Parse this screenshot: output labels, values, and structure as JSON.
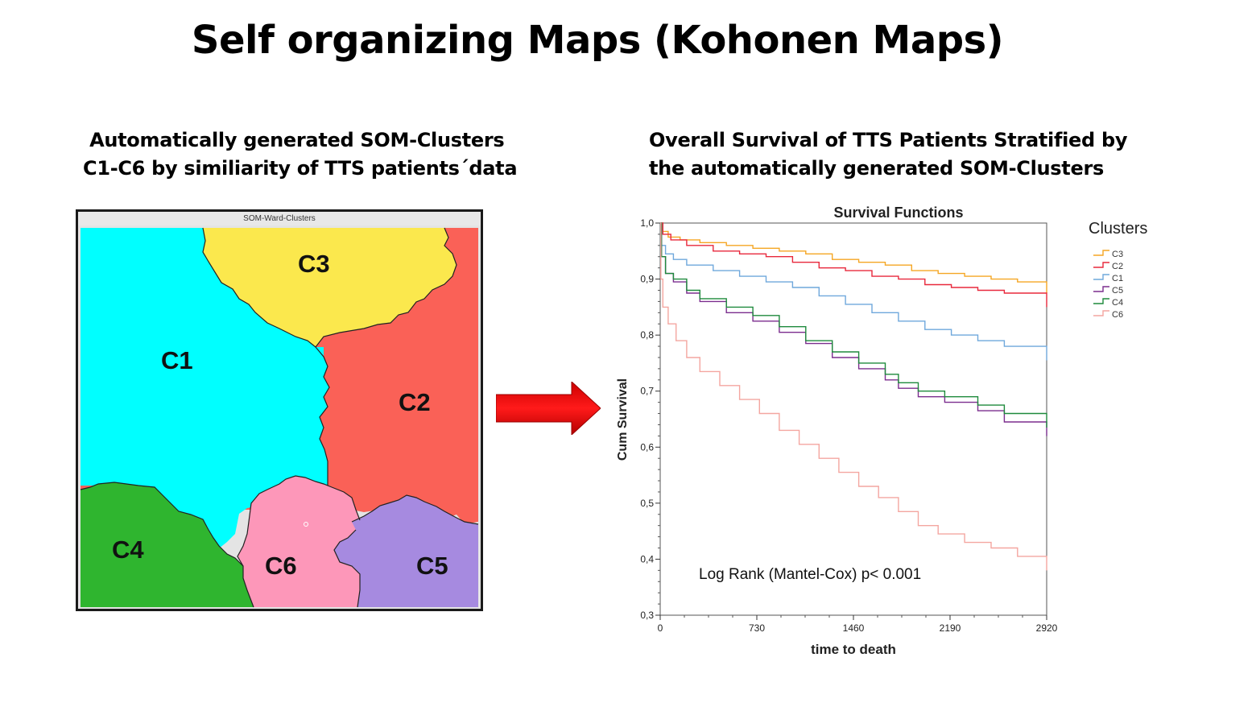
{
  "page": {
    "title": "Self organizing Maps (Kohonen Maps)",
    "left_subtitle": " Automatically generated SOM-Clusters C1-C6 by similiarity of TTS patients´data",
    "right_subtitle": "Overall Survival of TTS Patients Stratified by the automatically generated SOM-Clusters"
  },
  "som_map": {
    "window_title": "SOM-Ward-Clusters",
    "clusters": [
      {
        "label": "C1",
        "color": "#00ffff"
      },
      {
        "label": "C2",
        "color": "#fa6157"
      },
      {
        "label": "C3",
        "color": "#fbe84d"
      },
      {
        "label": "C4",
        "color": "#2fb52f"
      },
      {
        "label": "C5",
        "color": "#a68ae0"
      },
      {
        "label": "C6",
        "color": "#fd97b9"
      }
    ]
  },
  "arrow": {
    "color": "#ee0000",
    "icon": "right-arrow-icon"
  },
  "chart_data": {
    "type": "line",
    "subtype": "kaplan-meier step",
    "title": "Survival Functions",
    "xlabel": "time to death",
    "ylabel": "Cum Survival",
    "xlim": [
      0,
      2920
    ],
    "ylim": [
      0.3,
      1.0
    ],
    "xticks": [
      0,
      730,
      1460,
      2190,
      2920
    ],
    "xtick_labels": [
      "0",
      "730",
      "1460",
      "2190",
      "2920"
    ],
    "yticks": [
      0.3,
      0.4,
      0.5,
      0.6,
      0.7,
      0.8,
      0.9,
      1.0
    ],
    "ytick_labels": [
      "0,3",
      "0,4",
      "0,5",
      "0,6",
      "0,7",
      "0,8",
      "0,9",
      "1,0"
    ],
    "legend_title": "Clusters",
    "legend_position": "right",
    "annotation": "Log Rank (Mantel-Cox) p< 0.001",
    "series": [
      {
        "name": "C3",
        "color": "#f5a623",
        "points": [
          [
            0,
            1.0
          ],
          [
            20,
            0.985
          ],
          [
            60,
            0.975
          ],
          [
            150,
            0.97
          ],
          [
            300,
            0.965
          ],
          [
            500,
            0.96
          ],
          [
            700,
            0.955
          ],
          [
            900,
            0.95
          ],
          [
            1100,
            0.945
          ],
          [
            1300,
            0.935
          ],
          [
            1500,
            0.93
          ],
          [
            1700,
            0.925
          ],
          [
            1900,
            0.915
          ],
          [
            2100,
            0.91
          ],
          [
            2300,
            0.905
          ],
          [
            2500,
            0.9
          ],
          [
            2700,
            0.895
          ],
          [
            2920,
            0.895
          ]
        ]
      },
      {
        "name": "C2",
        "color": "#e8283c",
        "points": [
          [
            0,
            1.0
          ],
          [
            20,
            0.98
          ],
          [
            80,
            0.97
          ],
          [
            200,
            0.96
          ],
          [
            400,
            0.95
          ],
          [
            600,
            0.945
          ],
          [
            800,
            0.94
          ],
          [
            1000,
            0.93
          ],
          [
            1200,
            0.92
          ],
          [
            1400,
            0.915
          ],
          [
            1600,
            0.905
          ],
          [
            1800,
            0.9
          ],
          [
            2000,
            0.89
          ],
          [
            2200,
            0.885
          ],
          [
            2400,
            0.88
          ],
          [
            2600,
            0.875
          ],
          [
            2920,
            0.87
          ]
        ]
      },
      {
        "name": "C1",
        "color": "#6fa8dc",
        "points": [
          [
            0,
            1.0
          ],
          [
            10,
            0.96
          ],
          [
            40,
            0.945
          ],
          [
            100,
            0.935
          ],
          [
            200,
            0.925
          ],
          [
            400,
            0.915
          ],
          [
            600,
            0.905
          ],
          [
            800,
            0.895
          ],
          [
            1000,
            0.885
          ],
          [
            1200,
            0.87
          ],
          [
            1400,
            0.855
          ],
          [
            1600,
            0.84
          ],
          [
            1800,
            0.825
          ],
          [
            2000,
            0.81
          ],
          [
            2200,
            0.8
          ],
          [
            2400,
            0.79
          ],
          [
            2600,
            0.78
          ],
          [
            2920,
            0.775
          ]
        ]
      },
      {
        "name": "C5",
        "color": "#7b2d8e",
        "points": [
          [
            0,
            1.0
          ],
          [
            10,
            0.94
          ],
          [
            40,
            0.91
          ],
          [
            100,
            0.895
          ],
          [
            200,
            0.875
          ],
          [
            300,
            0.86
          ],
          [
            500,
            0.84
          ],
          [
            700,
            0.825
          ],
          [
            900,
            0.805
          ],
          [
            1100,
            0.785
          ],
          [
            1300,
            0.76
          ],
          [
            1500,
            0.74
          ],
          [
            1700,
            0.72
          ],
          [
            1800,
            0.705
          ],
          [
            1950,
            0.69
          ],
          [
            2150,
            0.68
          ],
          [
            2400,
            0.665
          ],
          [
            2600,
            0.645
          ],
          [
            2920,
            0.64
          ]
        ]
      },
      {
        "name": "C4",
        "color": "#1e8a3c",
        "points": [
          [
            0,
            1.0
          ],
          [
            10,
            0.94
          ],
          [
            40,
            0.91
          ],
          [
            100,
            0.9
          ],
          [
            200,
            0.88
          ],
          [
            300,
            0.865
          ],
          [
            500,
            0.85
          ],
          [
            700,
            0.835
          ],
          [
            900,
            0.815
          ],
          [
            1100,
            0.79
          ],
          [
            1300,
            0.77
          ],
          [
            1500,
            0.75
          ],
          [
            1700,
            0.73
          ],
          [
            1800,
            0.715
          ],
          [
            1950,
            0.7
          ],
          [
            2150,
            0.69
          ],
          [
            2400,
            0.675
          ],
          [
            2600,
            0.66
          ],
          [
            2920,
            0.655
          ]
        ]
      },
      {
        "name": "C6",
        "color": "#f4a6a0",
        "points": [
          [
            0,
            1.0
          ],
          [
            5,
            0.9
          ],
          [
            20,
            0.85
          ],
          [
            60,
            0.82
          ],
          [
            120,
            0.79
          ],
          [
            200,
            0.76
          ],
          [
            300,
            0.735
          ],
          [
            450,
            0.71
          ],
          [
            600,
            0.685
          ],
          [
            750,
            0.66
          ],
          [
            900,
            0.63
          ],
          [
            1050,
            0.605
          ],
          [
            1200,
            0.58
          ],
          [
            1350,
            0.555
          ],
          [
            1500,
            0.53
          ],
          [
            1650,
            0.51
          ],
          [
            1800,
            0.485
          ],
          [
            1950,
            0.46
          ],
          [
            2100,
            0.445
          ],
          [
            2300,
            0.43
          ],
          [
            2500,
            0.42
          ],
          [
            2700,
            0.405
          ],
          [
            2920,
            0.4
          ]
        ]
      }
    ]
  }
}
